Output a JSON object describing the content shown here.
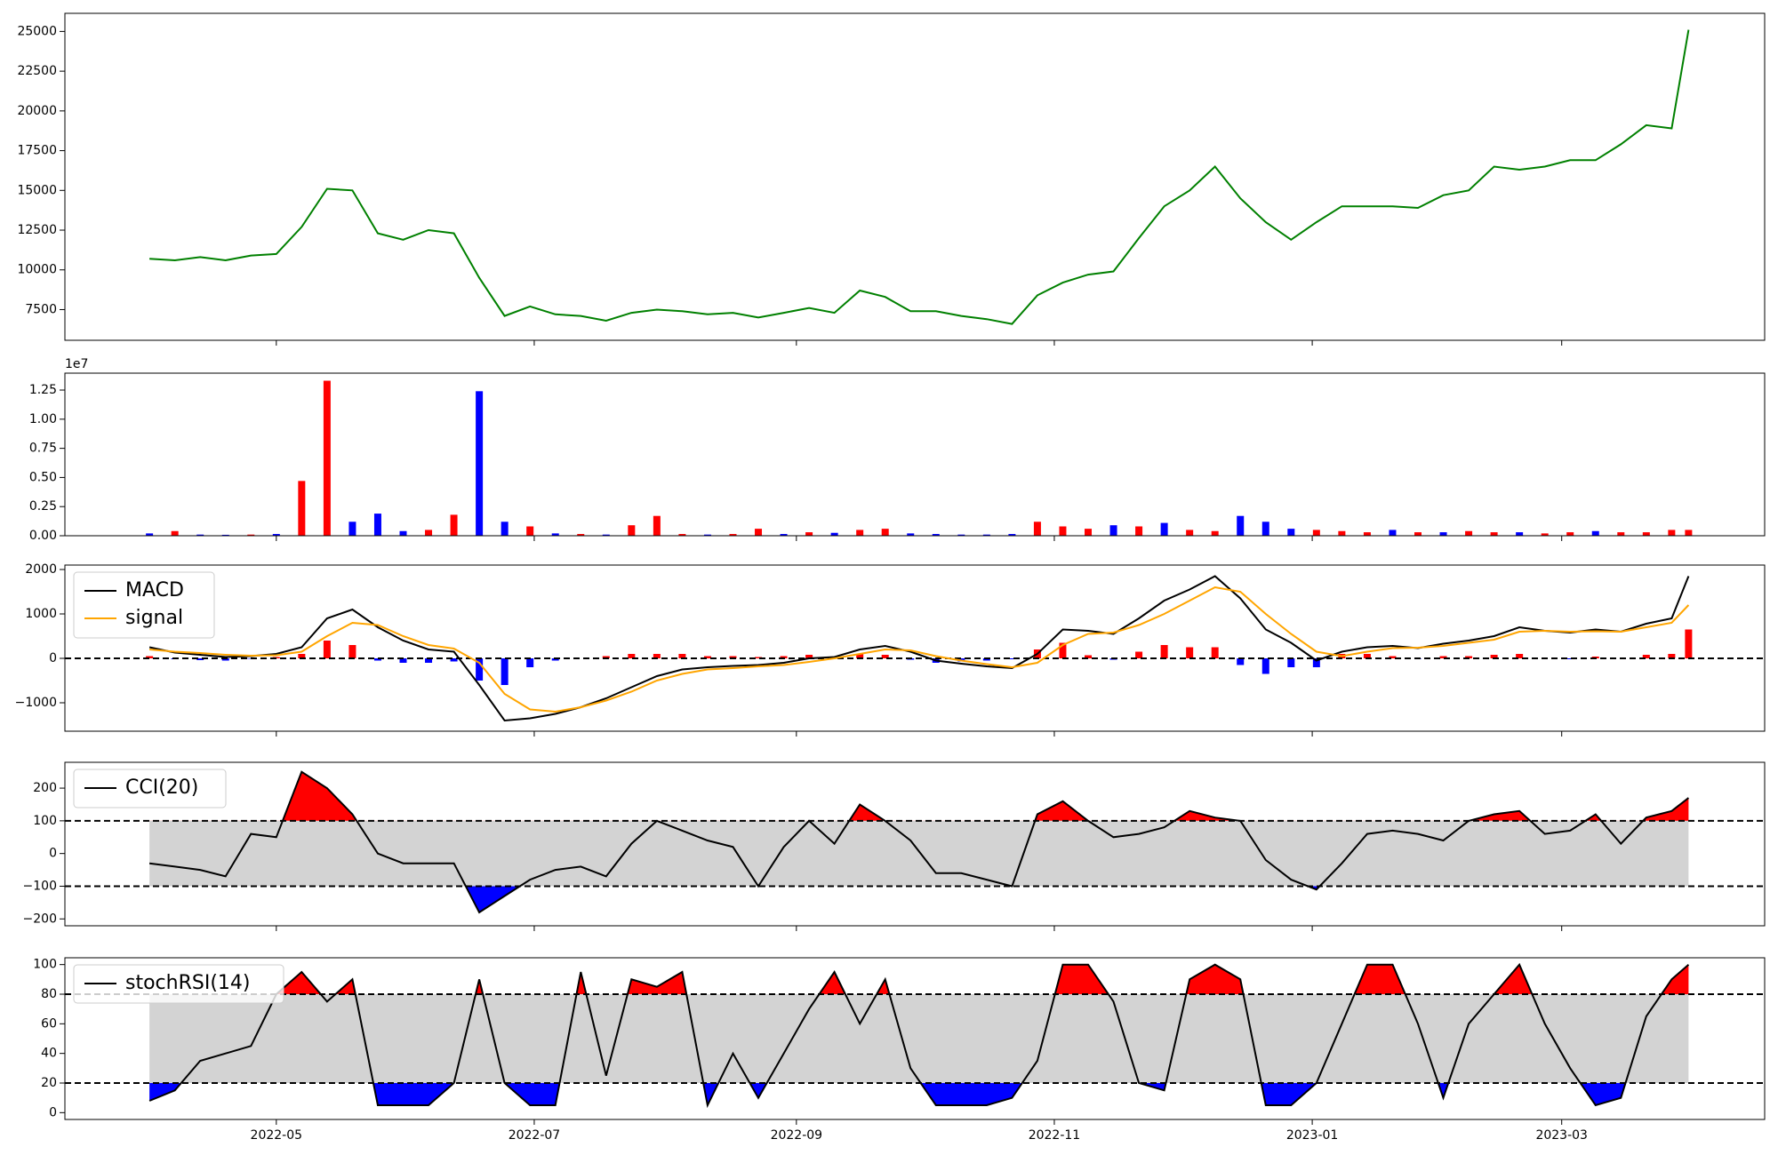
{
  "chart_data": [
    {
      "type": "line",
      "x": [
        19083,
        19089,
        19095,
        19101,
        19107,
        19113,
        19119,
        19125,
        19131,
        19137,
        19143,
        19149,
        19155,
        19161,
        19167,
        19173,
        19179,
        19185,
        19191,
        19197,
        19203,
        19209,
        19215,
        19221,
        19227,
        19233,
        19239,
        19245,
        19251,
        19257,
        19263,
        19269,
        19275,
        19281,
        19287,
        19293,
        19299,
        19305,
        19311,
        19317,
        19323,
        19329,
        19335,
        19341,
        19347,
        19353,
        19359,
        19365,
        19371,
        19377,
        19383,
        19389,
        19395,
        19401,
        19407,
        19413,
        19419,
        19425,
        19431,
        19437,
        19443,
        19447
      ],
      "xlim": [
        19063,
        19465
      ],
      "ylim": [
        5570,
        26140
      ],
      "yticks": [
        7500,
        10000,
        12500,
        15000,
        17500,
        20000,
        22500,
        25000
      ],
      "series": [
        {
          "color": "green",
          "values": [
            10700,
            10600,
            10800,
            10600,
            10900,
            11000,
            12700,
            15100,
            15000,
            12300,
            11900,
            12500,
            12300,
            9500,
            7100,
            7700,
            7200,
            7100,
            6800,
            7300,
            7500,
            7400,
            7200,
            7300,
            7000,
            7300,
            7600,
            7300,
            8700,
            8300,
            7400,
            7400,
            7100,
            6900,
            6600,
            8400,
            9200,
            9700,
            9900,
            12000,
            14000,
            15000,
            16500,
            14500,
            13000,
            11900,
            13000,
            14000,
            14000,
            14000,
            13900,
            14700,
            15000,
            16500,
            16300,
            16500,
            16900,
            16900,
            17900,
            19100,
            18900,
            25100
          ]
        }
      ]
    },
    {
      "type": "bar",
      "offset_label": "1e7",
      "ylim": [
        0,
        13950000
      ],
      "yticks": [
        {
          "value": 0,
          "label": "0.00"
        },
        {
          "value": 2500000,
          "label": "0.25"
        },
        {
          "value": 5000000,
          "label": "0.50"
        },
        {
          "value": 7500000,
          "label": "0.75"
        },
        {
          "value": 10000000,
          "label": "1.00"
        },
        {
          "value": 12500000,
          "label": "1.25"
        }
      ],
      "values": [
        200000,
        400000,
        100000,
        80000,
        100000,
        150000,
        4700000,
        13300000,
        1200000,
        1900000,
        400000,
        500000,
        1800000,
        12400000,
        1200000,
        800000,
        200000,
        150000,
        100000,
        900000,
        1700000,
        150000,
        100000,
        150000,
        600000,
        150000,
        300000,
        250000,
        500000,
        600000,
        200000,
        150000,
        100000,
        100000,
        150000,
        1200000,
        800000,
        600000,
        900000,
        800000,
        1100000,
        500000,
        400000,
        1700000,
        1200000,
        600000,
        500000,
        400000,
        300000,
        500000,
        300000,
        300000,
        400000,
        300000,
        300000,
        200000,
        300000,
        400000,
        300000,
        300000,
        500000,
        500000
      ],
      "colors": [
        "blue",
        "red",
        "blue",
        "blue",
        "red",
        "blue",
        "red",
        "red",
        "blue",
        "blue",
        "blue",
        "red",
        "red",
        "blue",
        "blue",
        "red",
        "blue",
        "red",
        "blue",
        "red",
        "red",
        "red",
        "blue",
        "red",
        "red",
        "blue",
        "red",
        "blue",
        "red",
        "red",
        "blue",
        "blue",
        "blue",
        "blue",
        "blue",
        "red",
        "red",
        "red",
        "blue",
        "red",
        "blue",
        "red",
        "red",
        "blue",
        "blue",
        "blue",
        "red",
        "red",
        "red",
        "blue",
        "red",
        "blue",
        "red",
        "red",
        "blue",
        "red",
        "red",
        "blue",
        "red",
        "red",
        "red",
        "red"
      ]
    },
    {
      "type": "macd",
      "ylim": [
        -1640,
        2100
      ],
      "yticks": [
        {
          "value": -1000,
          "label": "−1000"
        },
        0,
        1000,
        2000
      ],
      "hlines": [
        0
      ],
      "legend": "upper left",
      "series": [
        {
          "name": "MACD",
          "color": "black",
          "values": [
            250,
            130,
            80,
            30,
            50,
            100,
            250,
            900,
            1100,
            700,
            400,
            200,
            150,
            -600,
            -1400,
            -1350,
            -1250,
            -1100,
            -900,
            -650,
            -400,
            -250,
            -200,
            -170,
            -150,
            -100,
            0,
            30,
            200,
            280,
            150,
            -50,
            -120,
            -180,
            -220,
            100,
            650,
            620,
            550,
            900,
            1300,
            1550,
            1850,
            1350,
            650,
            350,
            -50,
            150,
            250,
            280,
            230,
            330,
            400,
            500,
            700,
            620,
            580,
            650,
            600,
            780,
            900,
            1850
          ]
        },
        {
          "name": "signal",
          "color": "orange",
          "values": [
            200,
            150,
            120,
            80,
            60,
            70,
            150,
            500,
            800,
            750,
            500,
            300,
            220,
            -100,
            -800,
            -1150,
            -1200,
            -1100,
            -950,
            -750,
            -500,
            -350,
            -250,
            -220,
            -180,
            -150,
            -80,
            0,
            100,
            200,
            180,
            50,
            -50,
            -130,
            -200,
            -100,
            300,
            550,
            580,
            750,
            1000,
            1300,
            1600,
            1500,
            1000,
            550,
            150,
            50,
            150,
            230,
            240,
            280,
            350,
            420,
            600,
            620,
            600,
            610,
            600,
            700,
            800,
            1200
          ]
        }
      ],
      "histogram": {
        "pos_color": "red",
        "neg_color": "blue",
        "values": [
          50,
          -20,
          -40,
          -50,
          -10,
          30,
          100,
          400,
          300,
          -50,
          -100,
          -100,
          -70,
          -500,
          -600,
          -200,
          -50,
          0,
          50,
          100,
          100,
          100,
          50,
          50,
          30,
          50,
          80,
          30,
          100,
          80,
          -30,
          -100,
          -70,
          -50,
          -20,
          200,
          350,
          70,
          -30,
          150,
          300,
          250,
          250,
          -150,
          -350,
          -200,
          -200,
          100,
          100,
          50,
          -10,
          50,
          50,
          80,
          100,
          0,
          -20,
          40,
          0,
          80,
          100,
          650
        ]
      }
    },
    {
      "type": "band",
      "ylim": [
        -221,
        279
      ],
      "yticks": [
        {
          "value": -200,
          "label": "−200"
        },
        {
          "value": -100,
          "label": "−100"
        },
        0,
        100,
        200
      ],
      "thresholds": [
        -100,
        100
      ],
      "above_color": "red",
      "below_color": "blue",
      "band_color": "lightgray",
      "legend": "upper left",
      "series": [
        {
          "name": "CCI(20)",
          "color": "black",
          "values": [
            -30,
            -40,
            -50,
            -70,
            60,
            50,
            250,
            200,
            120,
            0,
            -30,
            -30,
            -30,
            -180,
            -130,
            -80,
            -50,
            -40,
            -70,
            30,
            100,
            70,
            40,
            20,
            -100,
            20,
            100,
            30,
            150,
            100,
            40,
            -60,
            -60,
            -80,
            -100,
            120,
            160,
            100,
            50,
            60,
            80,
            130,
            110,
            100,
            -20,
            -80,
            -110,
            -30,
            60,
            70,
            60,
            40,
            100,
            120,
            130,
            60,
            70,
            120,
            30,
            110,
            130,
            170
          ]
        }
      ]
    },
    {
      "type": "band",
      "ylim": [
        -4.6,
        104.6
      ],
      "yticks": [
        0,
        20,
        40,
        60,
        80,
        100
      ],
      "thresholds": [
        20,
        80
      ],
      "above_color": "red",
      "below_color": "blue",
      "band_color": "lightgray",
      "legend": "upper left",
      "xticks": [
        {
          "value": 19113,
          "label": "2022-05"
        },
        {
          "value": 19174,
          "label": "2022-07"
        },
        {
          "value": 19236,
          "label": "2022-09"
        },
        {
          "value": 19297,
          "label": "2022-11"
        },
        {
          "value": 19358,
          "label": "2023-01"
        },
        {
          "value": 19417,
          "label": "2023-03"
        }
      ],
      "series": [
        {
          "name": "stochRSI(14)",
          "color": "black",
          "values": [
            8,
            15,
            35,
            40,
            45,
            80,
            95,
            75,
            90,
            5,
            5,
            5,
            20,
            90,
            20,
            5,
            5,
            95,
            25,
            90,
            85,
            95,
            5,
            40,
            10,
            40,
            70,
            95,
            60,
            90,
            30,
            5,
            5,
            5,
            10,
            35,
            100,
            100,
            75,
            20,
            15,
            90,
            100,
            90,
            5,
            5,
            20,
            60,
            100,
            100,
            60,
            10,
            60,
            80,
            100,
            60,
            30,
            5,
            10,
            65,
            90,
            100
          ]
        }
      ]
    }
  ]
}
